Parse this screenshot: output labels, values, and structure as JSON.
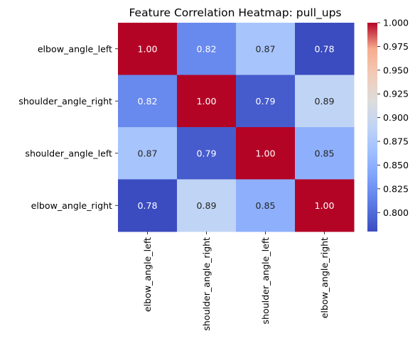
{
  "chart_data": {
    "type": "heatmap",
    "title": "Feature Correlation Heatmap: pull_ups",
    "rows": [
      "elbow_angle_left",
      "shoulder_angle_right",
      "shoulder_angle_left",
      "elbow_angle_right"
    ],
    "columns": [
      "elbow_angle_left",
      "shoulder_angle_right",
      "shoulder_angle_left",
      "elbow_angle_right"
    ],
    "values": [
      [
        1.0,
        0.82,
        0.87,
        0.78
      ],
      [
        0.82,
        1.0,
        0.79,
        0.89
      ],
      [
        0.87,
        0.79,
        1.0,
        0.85
      ],
      [
        0.78,
        0.89,
        0.85,
        1.0
      ]
    ],
    "value_format": "2 decimals",
    "colormap": "coolwarm",
    "color_range": [
      0.78,
      1.0
    ],
    "colorbar_ticks": [
      "0.800",
      "0.825",
      "0.850",
      "0.875",
      "0.900",
      "0.925",
      "0.950",
      "0.975",
      "1.000"
    ],
    "colorbar_tick_values": [
      0.8,
      0.825,
      0.85,
      0.875,
      0.9,
      0.925,
      0.95,
      0.975,
      1.0
    ],
    "grid": false,
    "legend": "colorbar-right"
  }
}
